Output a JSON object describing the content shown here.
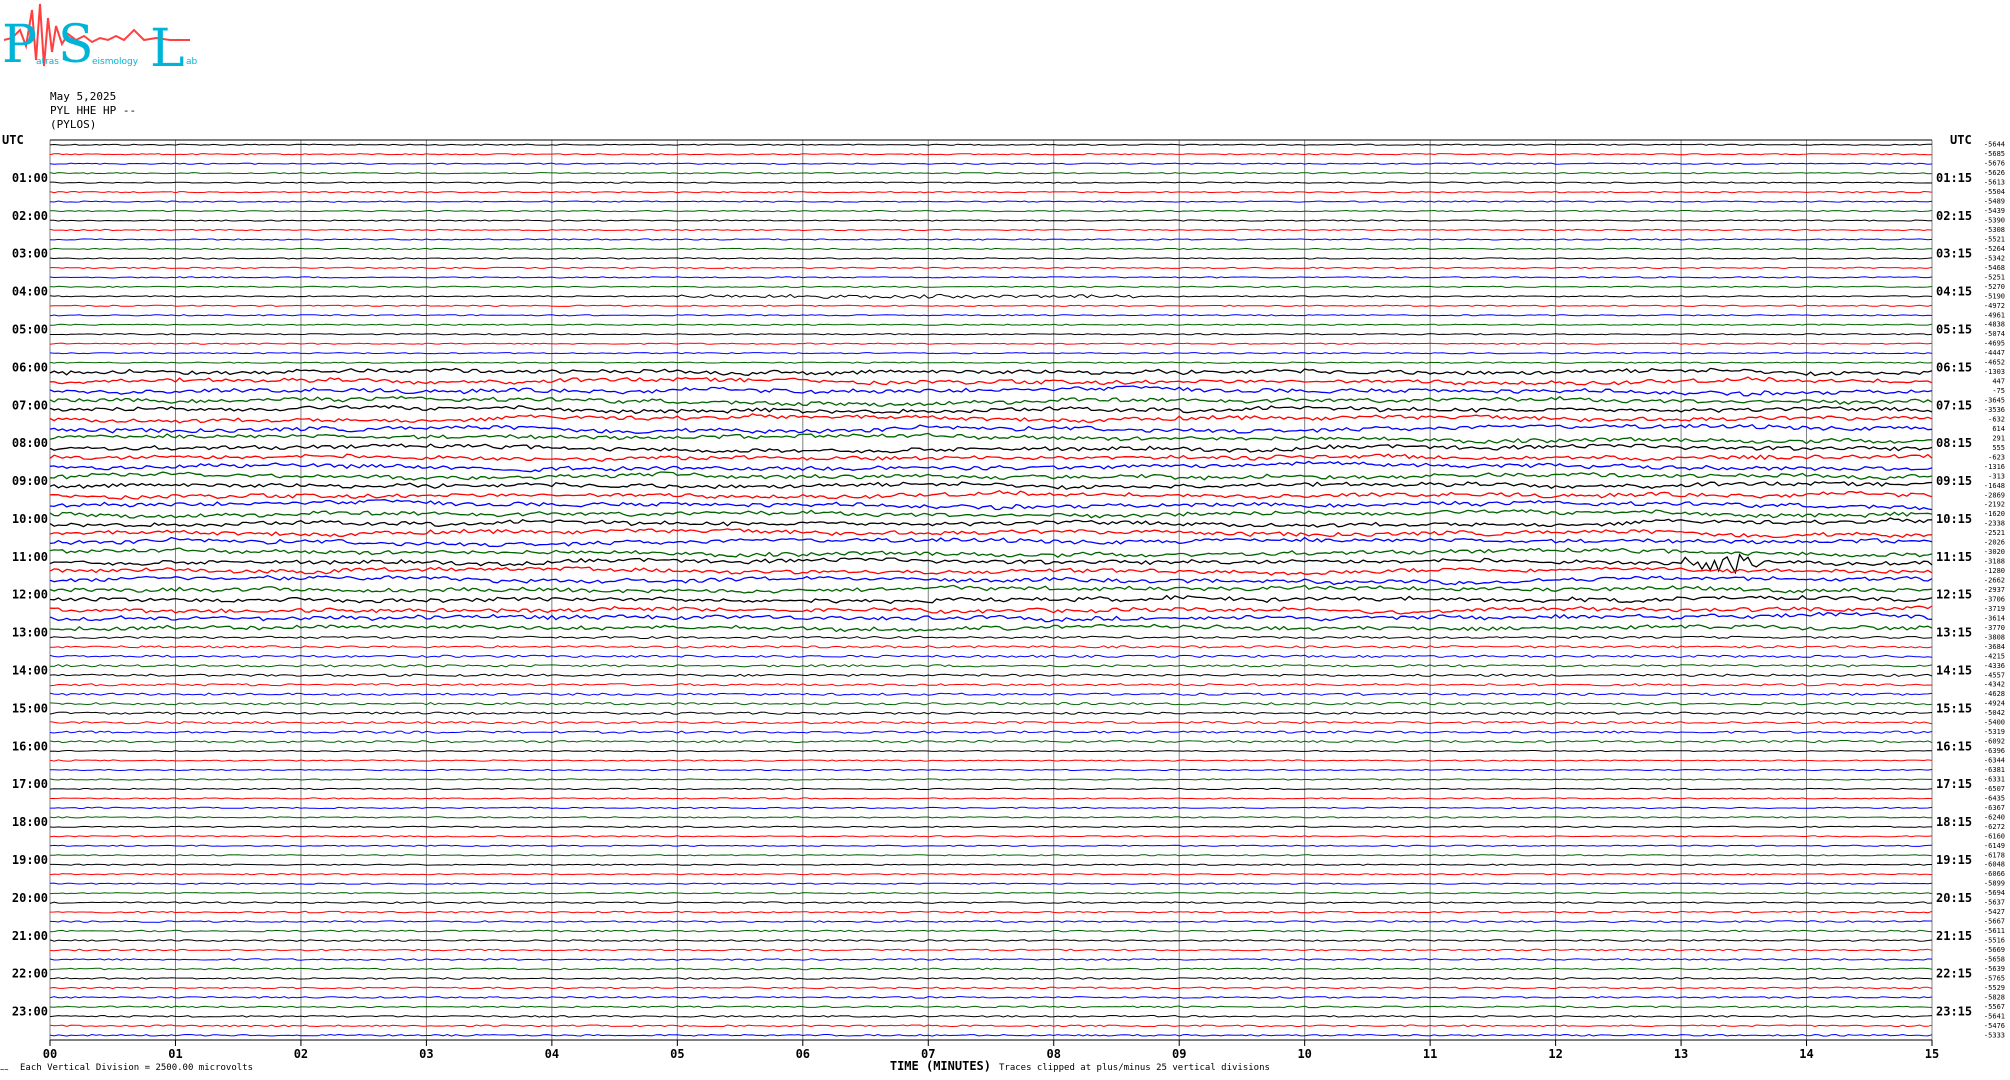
{
  "logo": {
    "letters": [
      "P",
      "S",
      "L"
    ],
    "small_text": [
      "atras",
      "eismology",
      "ab"
    ]
  },
  "header": {
    "date": "May 5,2025",
    "channel": "PYL HHE HP --",
    "station": "(PYLOS)"
  },
  "colors": {
    "trace_cycle": [
      "#000000",
      "#ff0000",
      "#0000ff",
      "#006400"
    ],
    "grid": "#808080",
    "logo_cyan": "#00b4d8",
    "logo_red": "#ff4040"
  },
  "chart_data": {
    "type": "line",
    "title": "",
    "xlabel": "TIME (MINUTES)",
    "ylabel": "",
    "x_ticks": [
      "00",
      "01",
      "02",
      "03",
      "04",
      "05",
      "06",
      "07",
      "08",
      "09",
      "10",
      "11",
      "12",
      "13",
      "14",
      "15"
    ],
    "xlim": [
      0,
      15
    ],
    "left_axis_label": "UTC",
    "right_axis_label": "UTC",
    "left_hour_labels": [
      "01:00",
      "02:00",
      "03:00",
      "04:00",
      "05:00",
      "06:00",
      "07:00",
      "08:00",
      "09:00",
      "10:00",
      "11:00",
      "12:00",
      "13:00",
      "14:00",
      "15:00",
      "16:00",
      "17:00",
      "18:00",
      "19:00",
      "20:00",
      "21:00",
      "22:00",
      "23:00"
    ],
    "right_hour_labels": [
      "01:15",
      "02:15",
      "03:15",
      "04:15",
      "05:15",
      "06:15",
      "07:15",
      "08:15",
      "09:15",
      "10:15",
      "11:15",
      "12:15",
      "13:15",
      "14:15",
      "15:15",
      "16:15",
      "17:15",
      "18:15",
      "19:15",
      "20:15",
      "21:15",
      "22:15",
      "23:15"
    ],
    "rows_per_hour": 4,
    "trace_offsets": [
      "-5644",
      "-5685",
      "-5676",
      "-5626",
      "-5613",
      "-5504",
      "-5489",
      "-5439",
      "-5390",
      "-5308",
      "-5521",
      "-5264",
      "-5342",
      "-5468",
      "-5251",
      "-5270",
      "-5190",
      "-4972",
      "-4961",
      "-4838",
      "-5074",
      "-4695",
      "-4447",
      "-4652",
      "-1303",
      "447",
      "-75",
      "-3645",
      "-3536",
      "-632",
      "614",
      "291",
      "555",
      "-623",
      "-1316",
      "-313",
      "-1648",
      "-2869",
      "-2192",
      "-1620",
      "-2338",
      "-2521",
      "-2026",
      "-3020",
      "-3188",
      "-1280",
      "-2662",
      "-2937",
      "-3706",
      "-3719",
      "-3614",
      "-3770",
      "-3808",
      "-3684",
      "-4215",
      "-4336",
      "-4557",
      "-4342",
      "-4628",
      "-4924",
      "-5042",
      "-5400",
      "-5319",
      "-6092",
      "-6396",
      "-6344",
      "-6381",
      "-6331",
      "-6507",
      "-6435",
      "-6367",
      "-6240",
      "-6272",
      "-6160",
      "-6149",
      "-6178",
      "-6048",
      "-6066",
      "-5899",
      "-5694",
      "-5637",
      "-5427",
      "-5667",
      "-5611",
      "-5516",
      "-5669",
      "-5658",
      "-5639",
      "-5765",
      "-5529",
      "-5828",
      "-5567",
      "-5641",
      "-5476",
      "-5333"
    ],
    "footer_left": "Each Vertical Division = 2500.00 microvolts",
    "footer_right": "Traces clipped at plus/minus 25 vertical divisions",
    "corner_mark": "~~"
  }
}
